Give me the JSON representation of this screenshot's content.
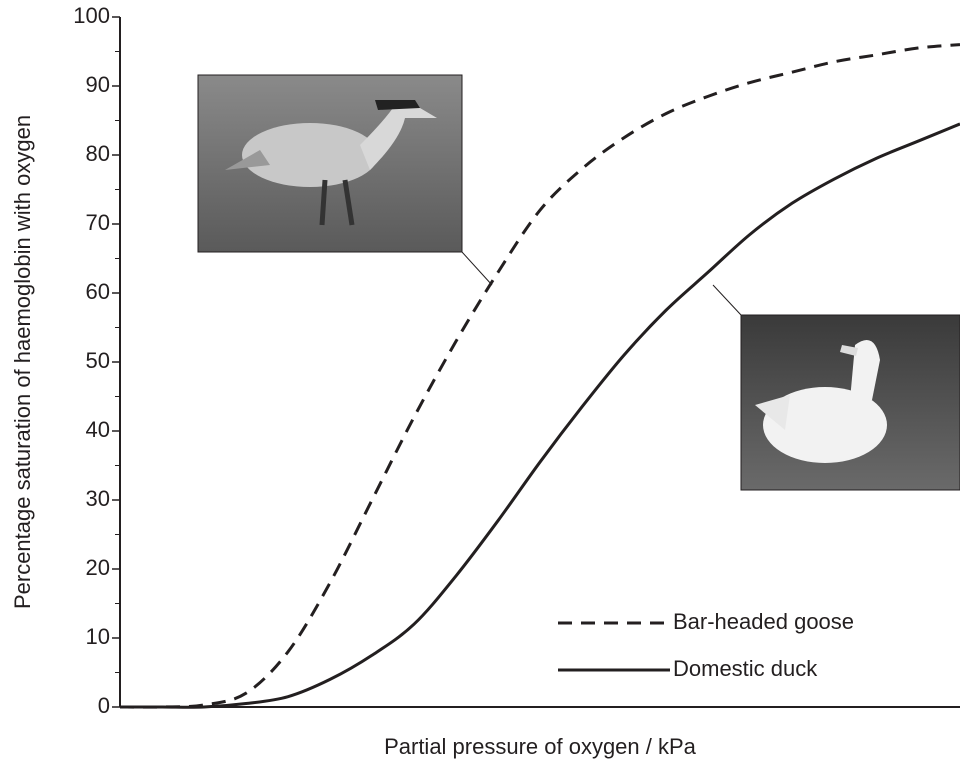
{
  "chart_data": {
    "type": "line",
    "x_label": "Partial pressure of oxygen / kPa",
    "y_label": "Percentage saturation of haemoglobin with oxygen",
    "categories": [
      null,
      null,
      null,
      null,
      null,
      null,
      null,
      null,
      null,
      null,
      null,
      null,
      null,
      null,
      null,
      null,
      null,
      null,
      null,
      null,
      null
    ],
    "series": [
      {
        "name": "Bar-headed goose",
        "color": "#231f20",
        "dash": "dashed",
        "values": [
          0,
          0,
          0.3,
          2,
          8,
          18,
          30,
          42,
          53,
          63,
          72,
          78,
          82.5,
          86,
          88.5,
          90.5,
          92,
          93.5,
          94.5,
          95.5,
          96
        ]
      },
      {
        "name": "Domestic duck",
        "color": "#231f20",
        "dash": "solid",
        "values": [
          0,
          0,
          0,
          0.5,
          1.5,
          4,
          7.5,
          12,
          19,
          27,
          35.5,
          43.5,
          51,
          57.5,
          63,
          68.5,
          73,
          76.5,
          79.5,
          82,
          84.5
        ]
      }
    ],
    "ylim": [
      0,
      100
    ],
    "yticks": [
      0,
      10,
      20,
      30,
      40,
      50,
      60,
      70,
      80,
      90,
      100
    ],
    "minor_yticks": [
      5,
      15,
      25,
      35,
      45,
      55,
      65,
      75,
      85,
      95
    ],
    "grid": false
  }
}
